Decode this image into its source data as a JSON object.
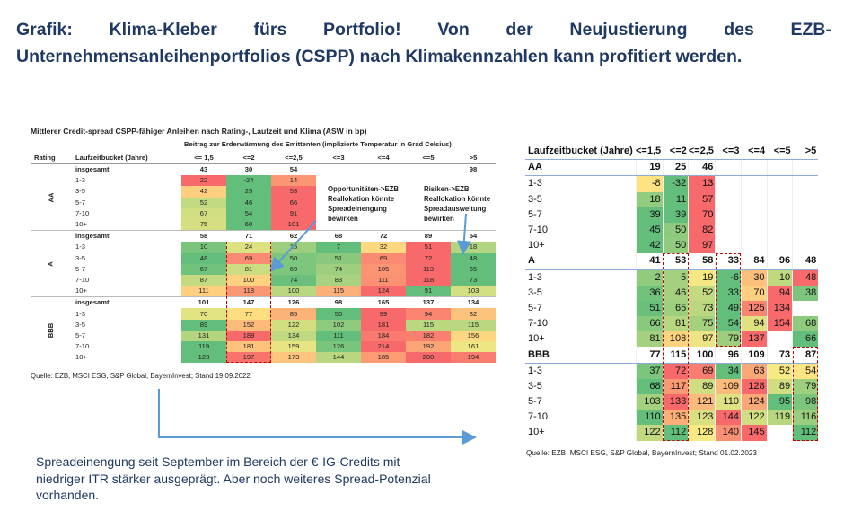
{
  "title": "Grafik: Klima-Kleber fürs Portfolio! Von der Neujustierung des EZB-Unternehmensanleihenportfolios (CSPP) nach Klimakennzahlen kann profitiert werden.",
  "left_table": {
    "title": "Mittlerer Credit-spread CSPP-fähiger Anleihen nach Rating-, Laufzeit und Klima (ASW in bp)",
    "subtitle": "Beitrag zur Erderwärmung des Emittenten (implizierte Temperatur in Grad Celsius)",
    "rating_header": "Rating",
    "bucket_header": "Laufzeitbucket (Jahre)",
    "columns": [
      "<= 1,5",
      "<=2",
      "<=2,5",
      "<=3",
      "<=4",
      "<=5",
      ">5"
    ],
    "groups": [
      {
        "rating": "AA",
        "total_label": "insgesamt",
        "total": [
          43,
          30,
          54,
          null,
          null,
          null,
          98
        ],
        "rows": [
          {
            "bucket": "1-3",
            "values": [
              22,
              -24,
              14,
              null,
              null,
              null,
              null
            ]
          },
          {
            "bucket": "3-5",
            "values": [
              42,
              25,
              53,
              null,
              null,
              null,
              null
            ]
          },
          {
            "bucket": "5-7",
            "values": [
              52,
              46,
              66,
              null,
              null,
              null,
              null
            ]
          },
          {
            "bucket": "7-10",
            "values": [
              67,
              54,
              91,
              null,
              null,
              null,
              null
            ]
          },
          {
            "bucket": "10+",
            "values": [
              75,
              60,
              101,
              null,
              null,
              null,
              null
            ]
          }
        ]
      },
      {
        "rating": "A",
        "total_label": "insgesamt",
        "total": [
          58,
          71,
          62,
          68,
          72,
          89,
          54
        ],
        "rows": [
          {
            "bucket": "1-3",
            "values": [
              10,
              24,
              15,
              7,
              32,
              51,
              18
            ]
          },
          {
            "bucket": "3-5",
            "values": [
              48,
              69,
              50,
              51,
              69,
              72,
              48
            ]
          },
          {
            "bucket": "5-7",
            "values": [
              67,
              81,
              69,
              74,
              105,
              113,
              65
            ]
          },
          {
            "bucket": "7-10",
            "values": [
              87,
              100,
              74,
              83,
              111,
              118,
              73
            ]
          },
          {
            "bucket": "10+",
            "values": [
              111,
              118,
              100,
              115,
              124,
              91,
              103
            ]
          }
        ]
      },
      {
        "rating": "BBB",
        "total_label": "insgesamt",
        "total": [
          101,
          147,
          126,
          98,
          165,
          137,
          134
        ],
        "rows": [
          {
            "bucket": "1-3",
            "values": [
              70,
              77,
              85,
              50,
              99,
              94,
              82
            ]
          },
          {
            "bucket": "3-5",
            "values": [
              89,
              152,
              122,
              102,
              181,
              115,
              115
            ]
          },
          {
            "bucket": "5-7",
            "values": [
              131,
              189,
              134,
              111,
              184,
              182,
              156
            ]
          },
          {
            "bucket": "7-10",
            "values": [
              119,
              181,
              159,
              126,
              214,
              192,
              161
            ]
          },
          {
            "bucket": "10+",
            "values": [
              123,
              197,
              173,
              144,
              185,
              200,
              194
            ]
          }
        ]
      }
    ],
    "annotations": [
      "Opportunitäten->EZB Reallokation könnte Spreadeinengung bewirken",
      "Risiken->EZB Reallokation könnte Spreadausweitung bewirken"
    ],
    "source": "Quelle: EZB, MSCI ESG, S&P Global, BayernInvest; Stand 19.09.2022"
  },
  "right_table": {
    "bucket_header": "Laufzeitbucket (Jahre)",
    "columns": [
      "<=1,5",
      "<=2",
      "<=2,5",
      "<=3",
      "<=4",
      "<=5",
      ">5"
    ],
    "groups": [
      {
        "rating": "AA",
        "total": [
          19,
          25,
          46,
          null,
          null,
          null,
          null
        ],
        "rows": [
          {
            "bucket": "1-3",
            "values": [
              -8,
              -32,
              13,
              null,
              null,
              null,
              null
            ]
          },
          {
            "bucket": "3-5",
            "values": [
              18,
              11,
              57,
              null,
              null,
              null,
              null
            ]
          },
          {
            "bucket": "5-7",
            "values": [
              39,
              39,
              70,
              null,
              null,
              null,
              null
            ]
          },
          {
            "bucket": "7-10",
            "values": [
              45,
              50,
              82,
              null,
              null,
              null,
              null
            ]
          },
          {
            "bucket": "10+",
            "values": [
              42,
              50,
              97,
              null,
              null,
              null,
              null
            ]
          }
        ]
      },
      {
        "rating": "A",
        "total": [
          41,
          53,
          58,
          33,
          84,
          96,
          48
        ],
        "rows": [
          {
            "bucket": "1-3",
            "values": [
              2,
              5,
              19,
              -6,
              30,
              10,
              48
            ]
          },
          {
            "bucket": "3-5",
            "values": [
              36,
              46,
              52,
              33,
              70,
              94,
              38
            ]
          },
          {
            "bucket": "5-7",
            "values": [
              51,
              65,
              73,
              49,
              125,
              134,
              null
            ]
          },
          {
            "bucket": "7-10",
            "values": [
              66,
              81,
              75,
              54,
              94,
              154,
              68
            ]
          },
          {
            "bucket": "10+",
            "values": [
              81,
              108,
              97,
              79,
              137,
              null,
              66
            ]
          }
        ]
      },
      {
        "rating": "BBB",
        "total": [
          77,
          115,
          100,
          96,
          109,
          73,
          87
        ],
        "rows": [
          {
            "bucket": "1-3",
            "values": [
              37,
              72,
              69,
              34,
              63,
              52,
              54
            ]
          },
          {
            "bucket": "3-5",
            "values": [
              68,
              117,
              89,
              109,
              128,
              89,
              79
            ]
          },
          {
            "bucket": "5-7",
            "values": [
              103,
              133,
              121,
              110,
              124,
              95,
              98
            ]
          },
          {
            "bucket": "7-10",
            "values": [
              110,
              135,
              123,
              144,
              122,
              119,
              116
            ]
          },
          {
            "bucket": "10+",
            "values": [
              122,
              112,
              128,
              140,
              145,
              null,
              112
            ]
          }
        ]
      }
    ],
    "source": "Quelle: EZB, MSCI ESG, S&P Global, BayernInvest; Stand 01.02.2023"
  },
  "note": "Spreadeinengung seit September im Bereich der €-IG-Credits mit niedriger ITR stärker ausgeprägt. Aber noch weiteres Spread-Potenzial vorhanden."
}
